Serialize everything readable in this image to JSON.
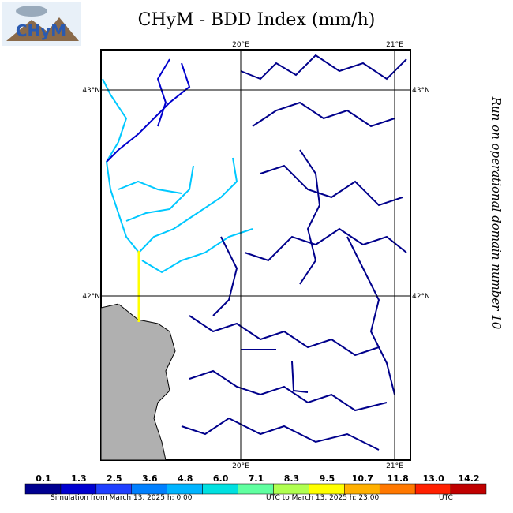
{
  "header": {
    "title": "CHyM - BDD Index (mm/h)",
    "logo_text": "CHyM"
  },
  "map": {
    "lon_labels": [
      "20°E",
      "21°E"
    ],
    "lat_labels": [
      "43°N",
      "42°N"
    ]
  },
  "side_note": "Run on operational domain number 10",
  "colorbar": {
    "labels": [
      "0.1",
      "1.3",
      "2.5",
      "3.6",
      "4.8",
      "6.0",
      "7.1",
      "8.3",
      "9.5",
      "10.7",
      "11.8",
      "13.0",
      "14.2"
    ],
    "colors": [
      "#000090",
      "#0000d0",
      "#2040ff",
      "#0080ff",
      "#00b4ff",
      "#00e0e0",
      "#60ffa0",
      "#b0ff50",
      "#ffff00",
      "#ffb000",
      "#ff7800",
      "#ff2000",
      "#c00000"
    ]
  },
  "footer": [
    "Simulation from March 13, 2025 h: 0.00",
    "UTC to March 13, 2025 h: 23.00",
    "UTC"
  ]
}
